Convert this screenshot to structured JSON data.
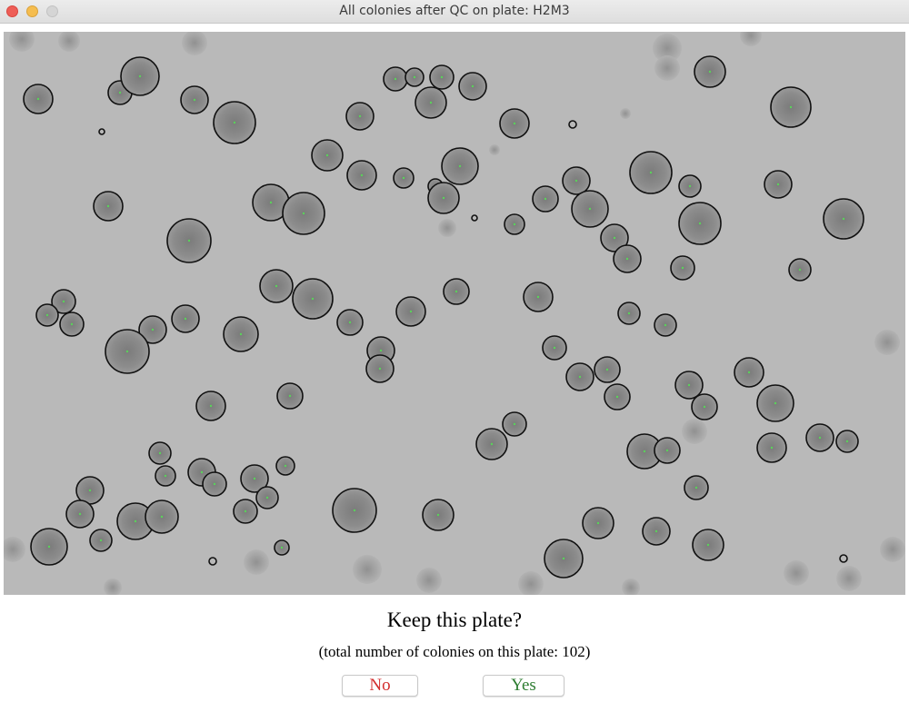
{
  "window": {
    "title": "All colonies after QC on plate: H2M3"
  },
  "dialog": {
    "question": "Keep this plate?",
    "count_text": "(total number of colonies on this plate: 102)",
    "no_label": "No",
    "yes_label": "Yes"
  },
  "colors": {
    "no_text": "#d32f2f",
    "yes_text": "#2e7d32",
    "colony_outline": "#111111",
    "colony_center": "#5ad25a"
  }
}
